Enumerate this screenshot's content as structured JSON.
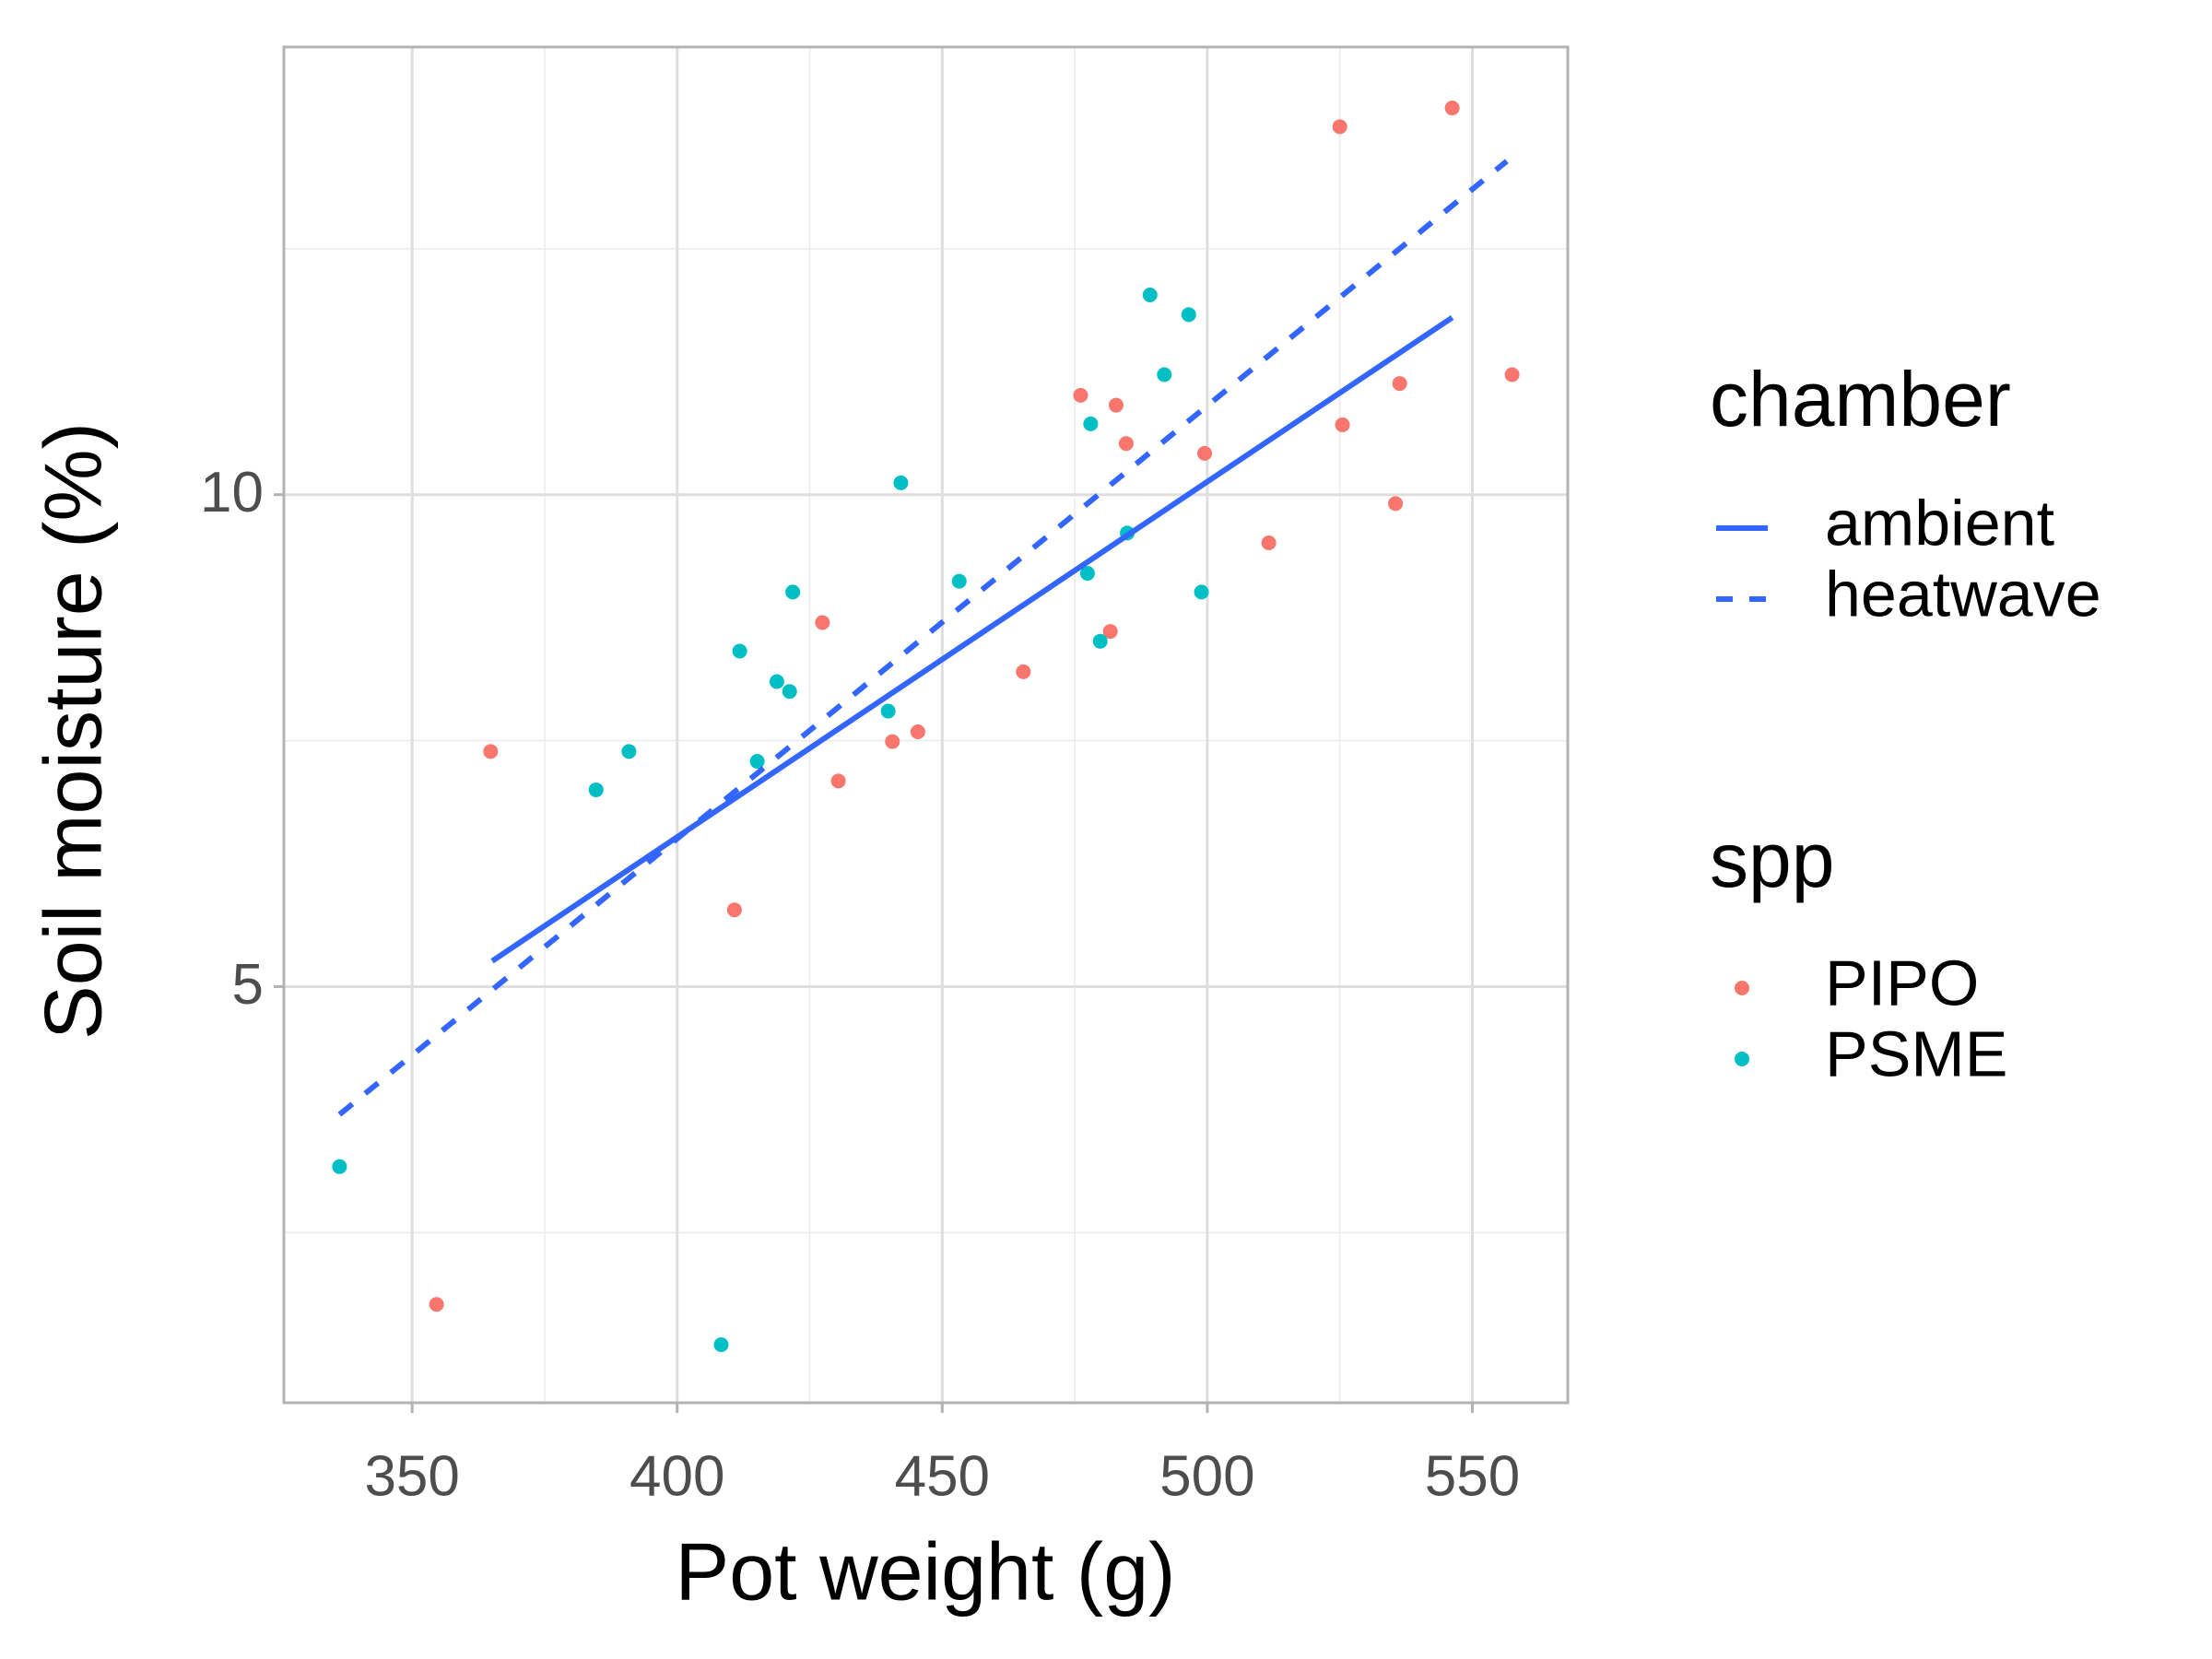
{
  "chart_data": {
    "type": "scatter",
    "x_label": "Pot weight (g)",
    "y_label": "Soil moisture (%)",
    "xlim": [
      325.8,
      568.0
    ],
    "ylim": [
      0.77,
      14.55
    ],
    "xticks": [
      350,
      400,
      450,
      500,
      550
    ],
    "yticks": [
      5,
      10
    ],
    "grid": true,
    "color_legend_title": "spp",
    "linetype_legend_title": "chamber",
    "series": [
      {
        "name": "PIPO",
        "color": "#F8766D",
        "x": [
          354.6,
          364.8,
          410.8,
          427.4,
          430.4,
          440.6,
          445.4,
          465.3,
          476.1,
          482.8,
          481.7,
          484.7,
          499.5,
          511.6,
          525.0,
          525.5,
          535.5,
          536.3,
          546.2,
          557.5
        ],
        "values": [
          1.77,
          7.39,
          5.78,
          8.7,
          7.09,
          7.49,
          7.59,
          8.2,
          11.01,
          10.91,
          8.61,
          10.52,
          10.42,
          9.51,
          13.74,
          10.71,
          9.91,
          11.13,
          13.93,
          11.22
        ]
      },
      {
        "name": "PSME",
        "color": "#00BFC4",
        "x": [
          336.3,
          384.7,
          390.9,
          408.3,
          411.8,
          415.1,
          418.8,
          421.2,
          421.8,
          439.8,
          442.2,
          453.2,
          478.0,
          477.4,
          479.8,
          484.9,
          489.2,
          491.9,
          496.5,
          498.9
        ],
        "values": [
          3.17,
          7.0,
          7.39,
          1.36,
          8.41,
          7.29,
          8.1,
          8.0,
          9.01,
          7.8,
          10.12,
          9.12,
          10.72,
          9.2,
          8.51,
          9.61,
          12.03,
          11.22,
          11.83,
          9.01
        ]
      }
    ],
    "lines": [
      {
        "name": "ambient",
        "color": "#3366FF",
        "dashed": false,
        "x": [
          365.1,
          546.2
        ],
        "values": [
          5.26,
          11.8
        ]
      },
      {
        "name": "heatwave",
        "color": "#3366FF",
        "dashed": true,
        "x": [
          336.3,
          556.5
        ],
        "values": [
          3.7,
          13.39
        ]
      }
    ]
  }
}
